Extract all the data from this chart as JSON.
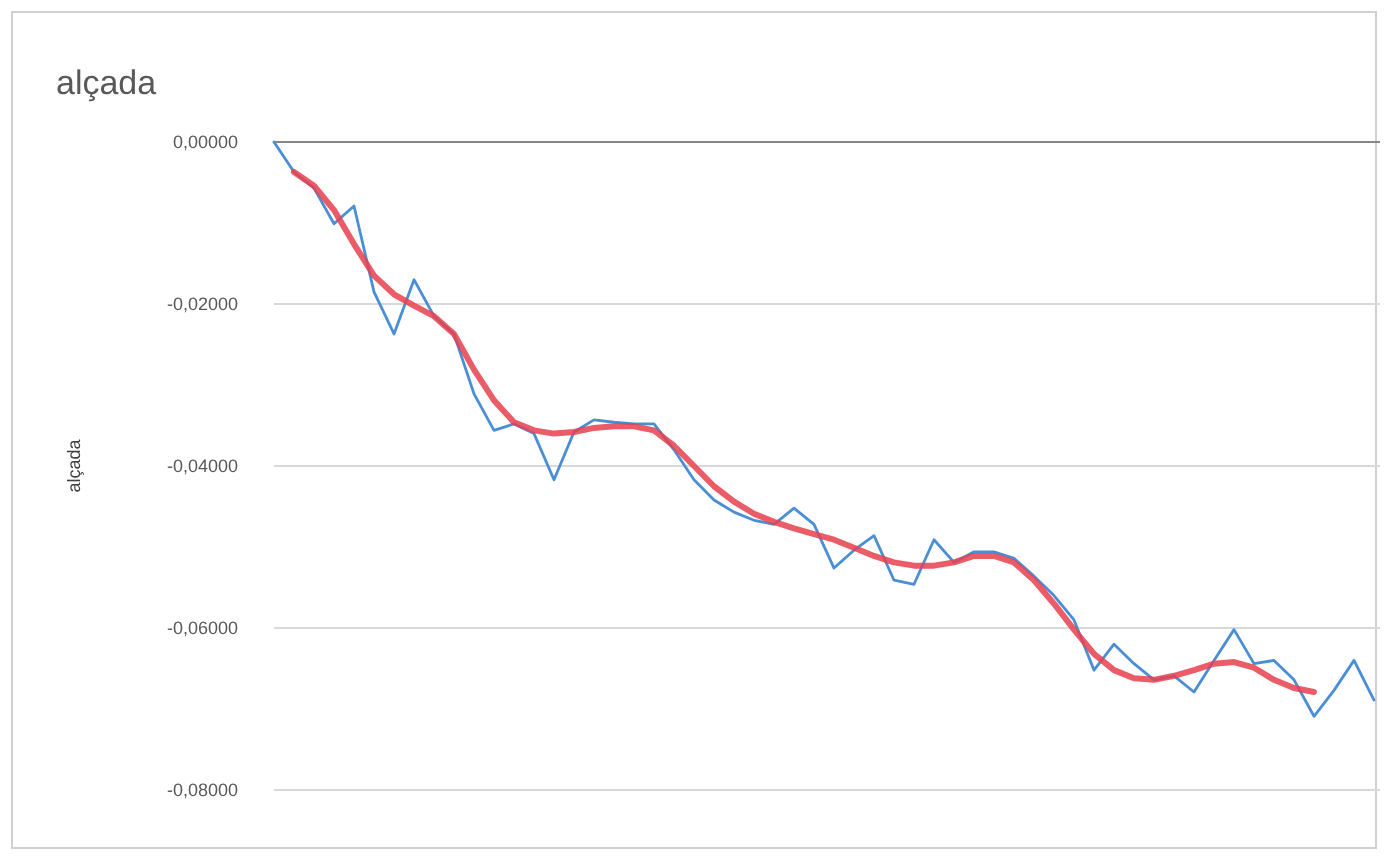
{
  "chart_data": {
    "type": "line",
    "title": "alçada",
    "ylabel": "alçada",
    "categories": [
      null,
      null,
      null,
      null,
      null,
      null,
      null,
      null,
      null,
      null,
      null,
      null,
      null,
      null,
      null,
      null,
      null,
      null,
      null,
      null,
      null,
      null,
      null,
      null,
      null,
      null,
      null,
      null,
      null,
      null,
      null,
      null,
      null,
      null,
      null,
      null,
      null,
      null,
      null,
      null,
      null,
      null,
      null,
      null,
      null,
      null,
      null,
      null,
      null,
      null,
      null,
      null,
      null,
      null,
      null,
      null
    ],
    "ylim": [
      -0.08,
      0
    ],
    "yticks": [
      {
        "value": 0,
        "label": "0,00000"
      },
      {
        "value": -0.02,
        "label": "-0,02000"
      },
      {
        "value": -0.04,
        "label": "-0,04000"
      },
      {
        "value": -0.06,
        "label": "-0,06000"
      },
      {
        "value": -0.08,
        "label": "-0,08000"
      }
    ],
    "grid": "y",
    "tick_labels": "y",
    "series": [
      {
        "color": "#4a8fd6",
        "values": [
          0,
          -0.0037,
          -0.0057,
          -0.0101,
          -0.0079,
          -0.0185,
          -0.0237,
          -0.017,
          -0.0215,
          -0.0237,
          -0.0311,
          -0.0356,
          -0.0348,
          -0.036,
          -0.0417,
          -0.0358,
          -0.0343,
          -0.0346,
          -0.0348,
          -0.0348,
          -0.038,
          -0.0417,
          -0.0442,
          -0.0457,
          -0.0467,
          -0.0472,
          -0.0452,
          -0.0472,
          -0.0526,
          -0.0504,
          -0.0486,
          -0.0541,
          -0.0546,
          -0.0491,
          -0.0519,
          -0.0506,
          -0.0506,
          -0.0514,
          -0.0536,
          -0.056,
          -0.059,
          -0.0652,
          -0.062,
          -0.0644,
          -0.0664,
          -0.0659,
          -0.0679,
          -0.064,
          -0.0602,
          -0.0644,
          -0.064,
          -0.0664,
          -0.0709,
          -0.0677,
          -0.064,
          -0.0689
        ]
      },
      {
        "color": "#e8404f",
        "values": [
          null,
          -0.0037,
          -0.0054,
          -0.0084,
          -0.0126,
          -0.0165,
          -0.0188,
          -0.0202,
          -0.0215,
          -0.0237,
          -0.0281,
          -0.0319,
          -0.0346,
          -0.0356,
          -0.036,
          -0.0358,
          -0.0353,
          -0.0351,
          -0.0351,
          -0.0356,
          -0.0375,
          -0.04,
          -0.0425,
          -0.0444,
          -0.0459,
          -0.0469,
          -0.0477,
          -0.0484,
          -0.0491,
          -0.0501,
          -0.0511,
          -0.0519,
          -0.0523,
          -0.0523,
          -0.0519,
          -0.0511,
          -0.0511,
          -0.0519,
          -0.0541,
          -0.057,
          -0.0602,
          -0.0632,
          -0.0652,
          -0.0662,
          -0.0664,
          -0.0659,
          -0.0652,
          -0.0644,
          -0.0642,
          -0.0649,
          -0.0664,
          -0.0674,
          -0.0679,
          null,
          null,
          null
        ]
      }
    ]
  }
}
